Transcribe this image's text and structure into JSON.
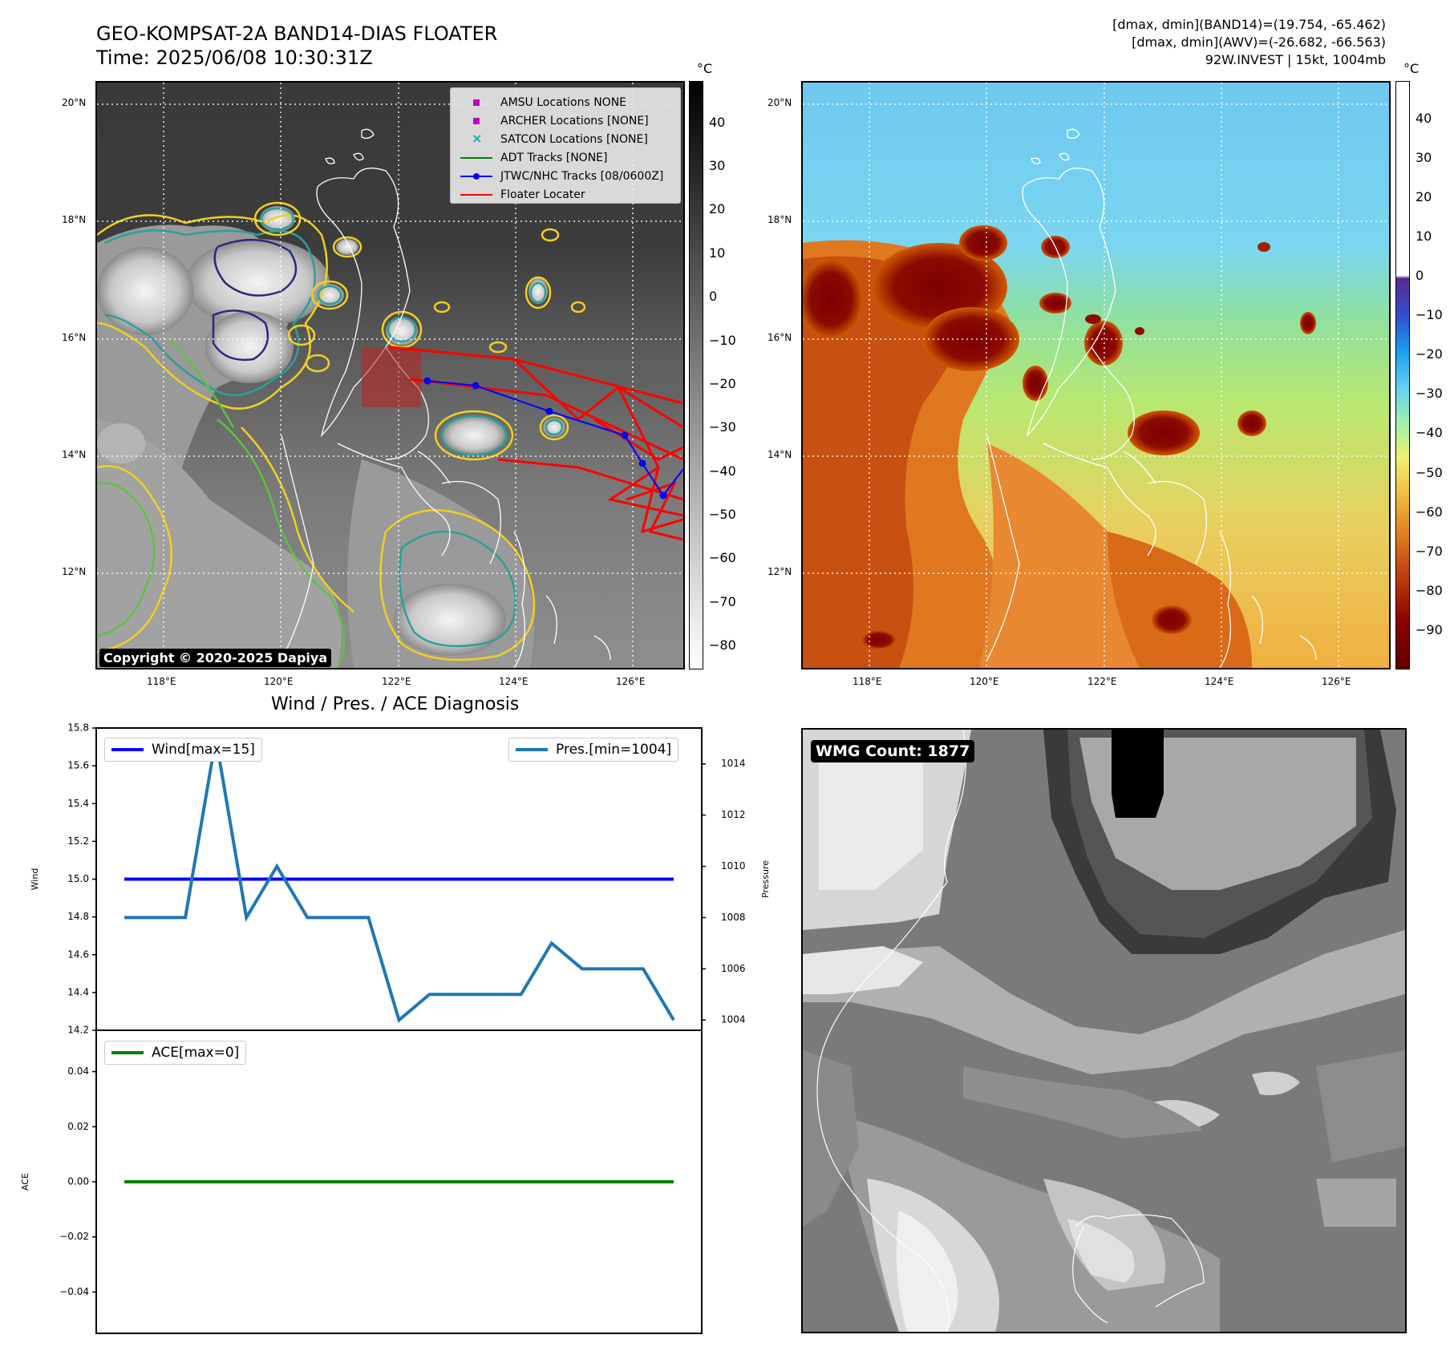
{
  "header": {
    "title_line1": "GEO-KOMPSAT-2A BAND14-DIAS FLOATER",
    "title_line2": "Time: 2025/06/08 10:30:31Z",
    "info_line1": "[dmax, dmin](BAND14)=(19.754, -65.462)",
    "info_line2": "[dmax, dmin](AWV)=(-26.682, -66.563)",
    "info_line3": "92W.INVEST | 15kt, 1004mb"
  },
  "map_axes": {
    "lat_labels": [
      "20°N",
      "18°N",
      "16°N",
      "14°N",
      "12°N"
    ],
    "lon_labels": [
      "118°E",
      "120°E",
      "122°E",
      "124°E",
      "126°E"
    ]
  },
  "colorbar_left": {
    "unit": "°C",
    "ticks": [
      "40",
      "30",
      "20",
      "10",
      "0",
      "−10",
      "−20",
      "−30",
      "−40",
      "−50",
      "−60",
      "−70",
      "−80"
    ]
  },
  "colorbar_right": {
    "unit": "°C",
    "ticks": [
      "40",
      "30",
      "20",
      "10",
      "0",
      "−10",
      "−20",
      "−30",
      "−40",
      "−50",
      "−60",
      "−70",
      "−80",
      "−90"
    ]
  },
  "map_legend": {
    "items": [
      {
        "label": "AMSU Locations NONE",
        "symbol": "square",
        "color": "#c000c0"
      },
      {
        "label": "ARCHER Locations [NONE]",
        "symbol": "square",
        "color": "#c000c0"
      },
      {
        "label": "SATCON Locations [NONE]",
        "symbol": "x",
        "color": "#00b0b0"
      },
      {
        "label": "ADT Tracks [NONE]",
        "symbol": "line",
        "color": "#008000"
      },
      {
        "label": "JTWC/NHC Tracks [08/0600Z]",
        "symbol": "line-dot",
        "color": "#0000ff"
      },
      {
        "label": "Floater Locater",
        "symbol": "line",
        "color": "#ff0000"
      }
    ]
  },
  "copyright": "Copyright © 2020-2025 Dapiya",
  "wmg_count": "WMG Count: 1877",
  "chart_data": {
    "type": "line",
    "title": "Wind / Pres. / ACE Diagnosis",
    "wind_pressure": {
      "ylabel_left": "Wind",
      "ylabel_right": "Pressure",
      "ylim_left": [
        14.2,
        15.8
      ],
      "ylim_right": [
        1003.6,
        1015.4
      ],
      "yticks_left": [
        14.2,
        14.4,
        14.6,
        14.8,
        15.0,
        15.2,
        15.4,
        15.6,
        15.8
      ],
      "yticks_right": [
        1004,
        1006,
        1008,
        1010,
        1012,
        1014
      ],
      "x": [
        0,
        1,
        2,
        3,
        4,
        5,
        6,
        7,
        8,
        9,
        10,
        11,
        12,
        13,
        14,
        15,
        16,
        17,
        18
      ],
      "series": [
        {
          "name": "Wind[max=15]",
          "axis": "left",
          "color": "#0000ff",
          "values": [
            15,
            15,
            15,
            15,
            15,
            15,
            15,
            15,
            15,
            15,
            15,
            15,
            15,
            15,
            15,
            15,
            15,
            15,
            15
          ]
        },
        {
          "name": "Pres.[min=1004]",
          "axis": "right",
          "color": "#1f77b4",
          "values": [
            1008,
            1008,
            1008,
            1015,
            1008,
            1010,
            1008,
            1008,
            1008,
            1004,
            1005,
            1005,
            1005,
            1005,
            1007,
            1006,
            1006,
            1006,
            1004
          ]
        }
      ]
    },
    "ace": {
      "ylabel": "ACE",
      "ylim": [
        -0.055,
        0.055
      ],
      "yticks": [
        -0.04,
        -0.02,
        0.0,
        0.02,
        0.04
      ],
      "ytick_labels": [
        "−0.04",
        "−0.02",
        "0.00",
        "0.02",
        "0.04"
      ],
      "x": [
        0,
        1,
        2,
        3,
        4,
        5,
        6,
        7,
        8,
        9,
        10,
        11,
        12,
        13,
        14,
        15,
        16,
        17,
        18
      ],
      "series": [
        {
          "name": "ACE[max=0]",
          "color": "#008000",
          "values": [
            0,
            0,
            0,
            0,
            0,
            0,
            0,
            0,
            0,
            0,
            0,
            0,
            0,
            0,
            0,
            0,
            0,
            0,
            0
          ]
        }
      ]
    }
  }
}
